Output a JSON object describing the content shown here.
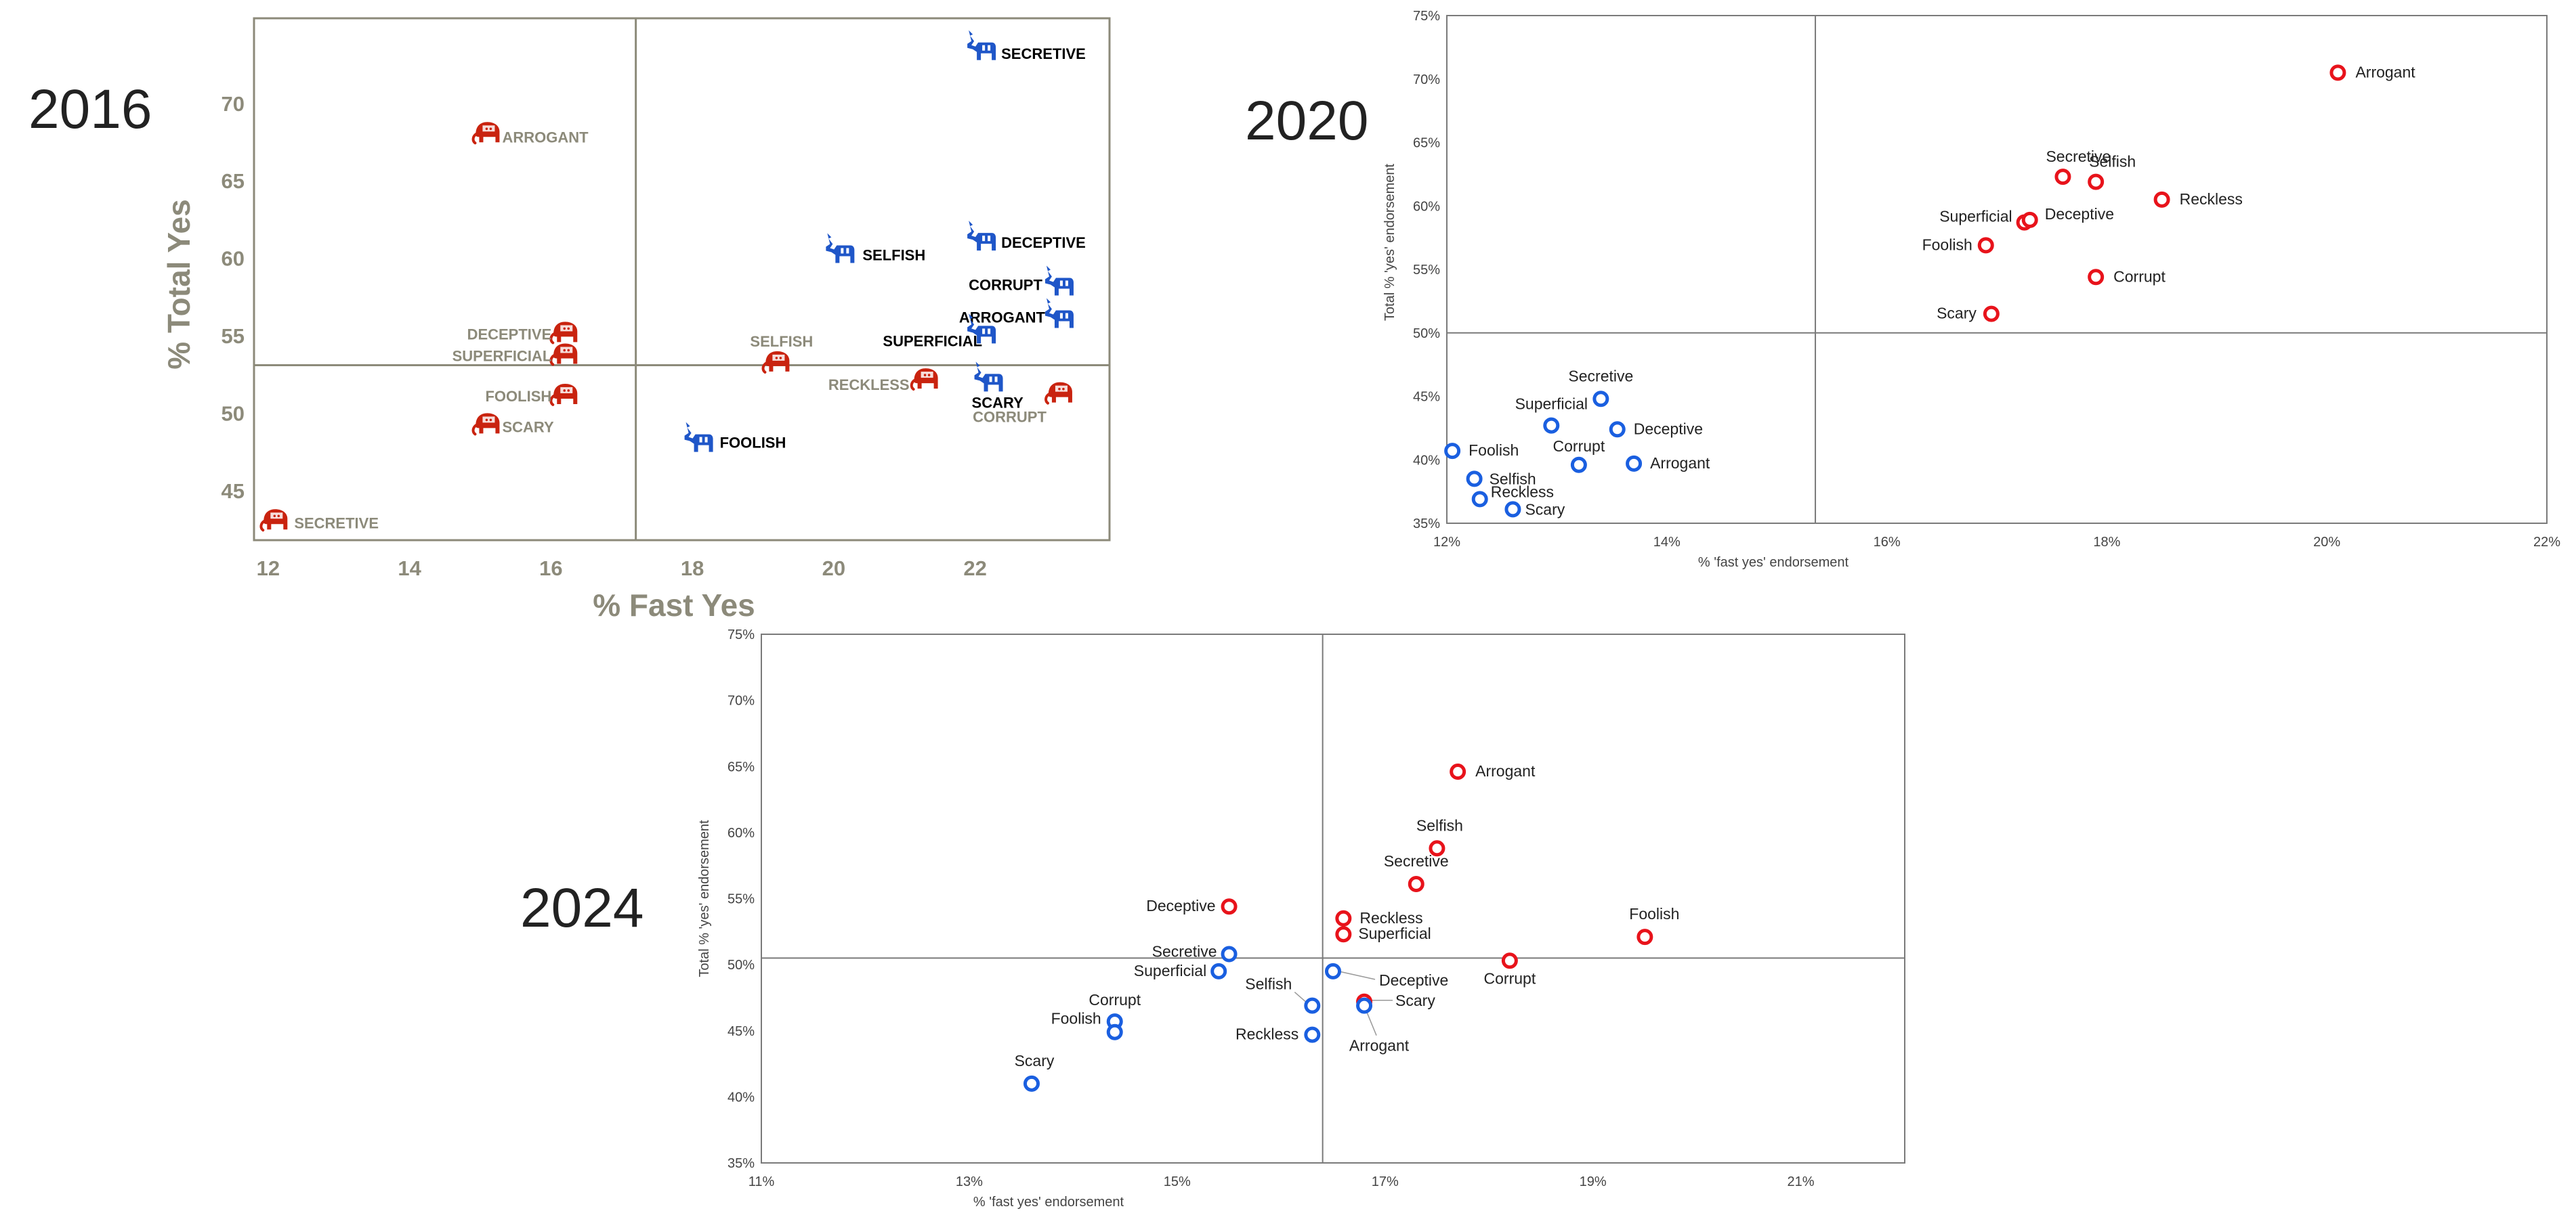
{
  "colors": {
    "republican": "#e8131b",
    "democrat": "#1a5fe0",
    "elephant": "#c9230f",
    "donkey": "#1f56c8",
    "axis_2016": "#8c8a7a",
    "axis": "#7a7a7a",
    "year_label": "#222222"
  },
  "chart_data": [
    {
      "type": "scatter",
      "year_label": "2016",
      "xlabel": "% Fast Yes",
      "ylabel": "% Total Yes",
      "xlim": [
        11.8,
        23.9
      ],
      "ylim": [
        41.8,
        75.5
      ],
      "xticks": [
        12,
        14,
        16,
        18,
        20,
        22
      ],
      "yticks": [
        45,
        50,
        55,
        60,
        65,
        70
      ],
      "tick_suffix": "",
      "divider": {
        "x": 17.2,
        "y": 53.1
      },
      "series": [
        {
          "name": "Republican",
          "marker": "elephant",
          "points": [
            {
              "label": "ARROGANT",
              "x": 15.1,
              "y": 68.1
            },
            {
              "label": "DECEPTIVE",
              "x": 16.2,
              "y": 55.2
            },
            {
              "label": "SUPERFICIAL",
              "x": 16.2,
              "y": 53.8
            },
            {
              "label": "FOOLISH",
              "x": 16.2,
              "y": 51.2
            },
            {
              "label": "SCARY",
              "x": 15.1,
              "y": 49.3
            },
            {
              "label": "SECRETIVE",
              "x": 12.1,
              "y": 43.1
            },
            {
              "label": "SELFISH",
              "x": 19.2,
              "y": 53.3
            },
            {
              "label": "RECKLESS",
              "x": 21.3,
              "y": 52.2
            },
            {
              "label": "CORRUPT",
              "x": 23.2,
              "y": 51.3
            }
          ]
        },
        {
          "name": "Democrat",
          "marker": "donkey",
          "points": [
            {
              "label": "SECRETIVE",
              "x": 22.1,
              "y": 73.5
            },
            {
              "label": "DECEPTIVE",
              "x": 22.1,
              "y": 61.2
            },
            {
              "label": "SELFISH",
              "x": 20.1,
              "y": 60.4
            },
            {
              "label": "CORRUPT",
              "x": 23.2,
              "y": 58.3
            },
            {
              "label": "ARROGANT",
              "x": 23.2,
              "y": 56.2
            },
            {
              "label": "SUPERFICIAL",
              "x": 22.1,
              "y": 55.2
            },
            {
              "label": "SCARY",
              "x": 22.2,
              "y": 52.1
            },
            {
              "label": "FOOLISH",
              "x": 18.1,
              "y": 48.2
            }
          ]
        }
      ]
    },
    {
      "type": "scatter",
      "year_label": "2020",
      "xlabel": "% 'fast yes' endorsement",
      "ylabel": "Total % 'yes' endorsement",
      "xlim": [
        12,
        22
      ],
      "ylim": [
        35,
        75
      ],
      "xticks": [
        12,
        14,
        16,
        18,
        20,
        22
      ],
      "yticks": [
        35,
        40,
        45,
        50,
        55,
        60,
        65,
        70,
        75
      ],
      "tick_suffix": "%",
      "divider": {
        "x": 15.35,
        "y": 50
      },
      "series": [
        {
          "name": "Republican",
          "marker": "circle",
          "points": [
            {
              "label": "Arrogant",
              "x": 20.1,
              "y": 70.5
            },
            {
              "label": "Secretive",
              "x": 17.6,
              "y": 62.3
            },
            {
              "label": "Selfish",
              "x": 17.9,
              "y": 61.9
            },
            {
              "label": "Reckless",
              "x": 18.5,
              "y": 60.5
            },
            {
              "label": "Superficial",
              "x": 17.25,
              "y": 58.7
            },
            {
              "label": "Deceptive",
              "x": 17.3,
              "y": 58.9
            },
            {
              "label": "Foolish",
              "x": 16.9,
              "y": 56.9
            },
            {
              "label": "Corrupt",
              "x": 17.9,
              "y": 54.4
            },
            {
              "label": "Scary",
              "x": 16.95,
              "y": 51.5
            }
          ]
        },
        {
          "name": "Democrat",
          "marker": "circle",
          "points": [
            {
              "label": "Secretive",
              "x": 13.4,
              "y": 44.8
            },
            {
              "label": "Superficial",
              "x": 12.95,
              "y": 42.7
            },
            {
              "label": "Deceptive",
              "x": 13.55,
              "y": 42.4
            },
            {
              "label": "Foolish",
              "x": 12.05,
              "y": 40.7
            },
            {
              "label": "Corrupt",
              "x": 13.2,
              "y": 39.6
            },
            {
              "label": "Arrogant",
              "x": 13.7,
              "y": 39.7
            },
            {
              "label": "Selfish",
              "x": 12.25,
              "y": 38.5
            },
            {
              "label": "Reckless",
              "x": 12.3,
              "y": 36.9
            },
            {
              "label": "Scary",
              "x": 12.6,
              "y": 36.1
            }
          ]
        }
      ]
    },
    {
      "type": "scatter",
      "year_label": "2024",
      "xlabel": "% 'fast yes' endorsement",
      "ylabel": "Total % 'yes' endorsement",
      "xlim": [
        11,
        22
      ],
      "ylim": [
        35,
        75
      ],
      "xticks": [
        11,
        13,
        15,
        17,
        19,
        21
      ],
      "yticks": [
        35,
        40,
        45,
        50,
        55,
        60,
        65,
        70,
        75
      ],
      "tick_suffix": "%",
      "divider": {
        "x": 16.4,
        "y": 50.5
      },
      "series": [
        {
          "name": "Republican",
          "marker": "circle",
          "points": [
            {
              "label": "Arrogant",
              "x": 17.7,
              "y": 64.6
            },
            {
              "label": "Selfish",
              "x": 17.5,
              "y": 58.8
            },
            {
              "label": "Secretive",
              "x": 17.3,
              "y": 56.1
            },
            {
              "label": "Deceptive",
              "x": 15.5,
              "y": 54.4
            },
            {
              "label": "Reckless",
              "x": 16.6,
              "y": 53.5
            },
            {
              "label": "Superficial",
              "x": 16.6,
              "y": 52.3
            },
            {
              "label": "Foolish",
              "x": 19.5,
              "y": 52.1
            },
            {
              "label": "Corrupt",
              "x": 18.2,
              "y": 50.3
            },
            {
              "label": "Scary",
              "x": 16.8,
              "y": 47.2
            }
          ]
        },
        {
          "name": "Democrat",
          "marker": "circle",
          "points": [
            {
              "label": "Secretive",
              "x": 15.5,
              "y": 50.8
            },
            {
              "label": "Superficial",
              "x": 15.4,
              "y": 49.5
            },
            {
              "label": "Deceptive",
              "x": 16.5,
              "y": 49.5
            },
            {
              "label": "Selfish",
              "x": 16.3,
              "y": 46.9
            },
            {
              "label": "Arrogant",
              "x": 16.8,
              "y": 46.9
            },
            {
              "label": "Corrupt",
              "x": 14.4,
              "y": 45.7
            },
            {
              "label": "Foolish",
              "x": 14.4,
              "y": 44.9
            },
            {
              "label": "Reckless",
              "x": 16.3,
              "y": 44.7
            },
            {
              "label": "Scary",
              "x": 13.6,
              "y": 41.0
            }
          ]
        }
      ]
    }
  ]
}
